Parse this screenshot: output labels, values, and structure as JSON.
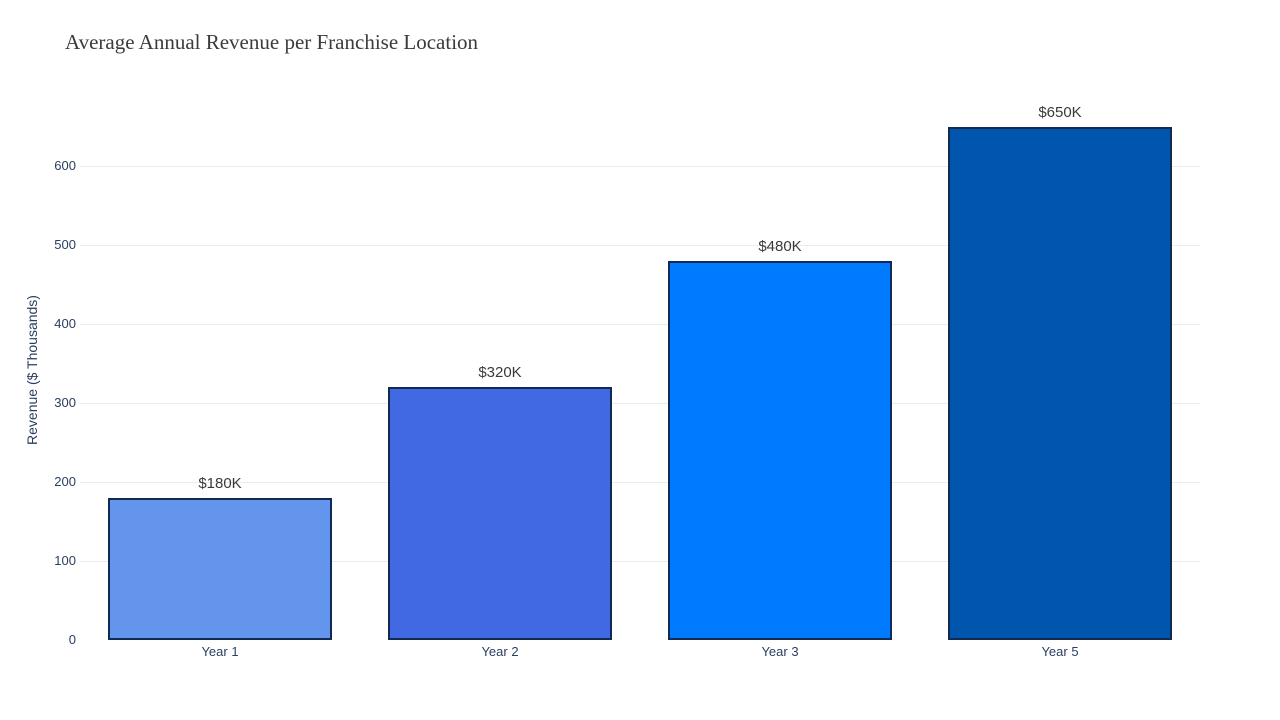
{
  "figure": {
    "background_color": "#ffffff"
  },
  "chart_data": {
    "type": "bar",
    "title": "Average Annual Revenue per Franchise Location",
    "categories": [
      "Year 1",
      "Year 2",
      "Year 3",
      "Year 5"
    ],
    "values": [
      180,
      320,
      480,
      650
    ],
    "value_labels": [
      "$180K",
      "$320K",
      "$480K",
      "$650K"
    ],
    "bar_colors": [
      "#6495ED",
      "#4169E1",
      "#007BFF",
      "#0055AD"
    ],
    "bar_border_color": "#102a52",
    "xlabel": "",
    "ylabel": "Revenue ($ Thousands)",
    "ylim": [
      0,
      680
    ],
    "yticks": [
      0,
      100,
      200,
      300,
      400,
      500,
      600
    ],
    "grid": true,
    "legend": "none",
    "gridline_color": "#e9ebee",
    "axis_text_color": "#2a3f5f",
    "value_label_color": "#3a3a3a",
    "title_color": "#3b3b3b"
  }
}
